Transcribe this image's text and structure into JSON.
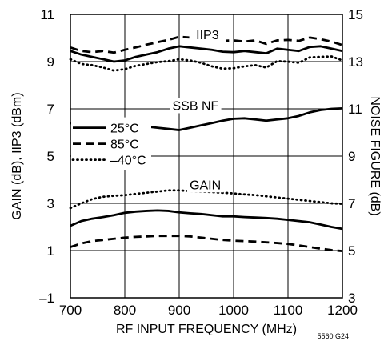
{
  "chart_data": {
    "type": "line",
    "title": "",
    "xlabel": "RF INPUT FREQUENCY (MHz)",
    "ylabel": "GAIN (dB), IIP3 (dBm)",
    "y2label": "NOISE FIGURE (dB)",
    "xlim": [
      700,
      1200
    ],
    "ylim": [
      -1,
      11
    ],
    "y2lim": [
      3,
      15
    ],
    "x_ticks": [
      "700",
      "800",
      "900",
      "1000",
      "1100",
      "1200"
    ],
    "y_ticks": [
      "–1",
      "1",
      "3",
      "5",
      "7",
      "9",
      "11"
    ],
    "y2_ticks": [
      "3",
      "5",
      "7",
      "9",
      "11",
      "13",
      "15"
    ],
    "grid": true,
    "legend_position": "middle-left",
    "legend": [
      {
        "label": "25°C",
        "style": "solid"
      },
      {
        "label": "85°C",
        "style": "dashed"
      },
      {
        "label": "–40°C",
        "style": "dotted"
      }
    ],
    "annotations": [
      {
        "text": "IIP3",
        "x": 952,
        "y": 9.95
      },
      {
        "text": "SSB NF",
        "x": 930,
        "y": 6.95
      },
      {
        "text": "GAIN",
        "x": 948,
        "y": 3.6
      }
    ],
    "figure_id": "5560 G24",
    "series": [
      {
        "group": "IIP3",
        "temp": "85°C",
        "style": "dashed",
        "axis": "left",
        "x": [
          700,
          720,
          740,
          760,
          780,
          800,
          820,
          840,
          860,
          880,
          900,
          920,
          940,
          960,
          980,
          1000,
          1020,
          1040,
          1060,
          1080,
          1100,
          1120,
          1140,
          1160,
          1180,
          1200
        ],
        "y": [
          9.6,
          9.45,
          9.4,
          9.45,
          9.38,
          9.5,
          9.6,
          9.72,
          9.82,
          9.92,
          10.05,
          10.02,
          10.0,
          9.95,
          9.88,
          9.9,
          9.85,
          9.9,
          9.75,
          9.9,
          9.92,
          9.88,
          10.02,
          9.95,
          9.85,
          9.7
        ]
      },
      {
        "group": "IIP3",
        "temp": "25°C",
        "style": "solid",
        "axis": "left",
        "x": [
          700,
          720,
          740,
          760,
          780,
          800,
          820,
          840,
          860,
          880,
          900,
          920,
          940,
          960,
          980,
          1000,
          1020,
          1040,
          1060,
          1080,
          1100,
          1120,
          1140,
          1160,
          1180,
          1200
        ],
        "y": [
          9.45,
          9.3,
          9.2,
          9.1,
          9.0,
          9.05,
          9.2,
          9.3,
          9.4,
          9.55,
          9.65,
          9.6,
          9.55,
          9.5,
          9.42,
          9.4,
          9.45,
          9.4,
          9.35,
          9.55,
          9.5,
          9.45,
          9.62,
          9.65,
          9.55,
          9.45
        ]
      },
      {
        "group": "IIP3",
        "temp": "–40°C",
        "style": "dotted",
        "axis": "left",
        "x": [
          700,
          720,
          740,
          760,
          780,
          800,
          820,
          840,
          860,
          880,
          900,
          920,
          940,
          960,
          980,
          1000,
          1020,
          1040,
          1060,
          1080,
          1100,
          1120,
          1140,
          1160,
          1180,
          1200
        ],
        "y": [
          9.1,
          8.9,
          8.85,
          8.75,
          8.62,
          8.68,
          8.82,
          8.9,
          8.98,
          9.02,
          9.1,
          9.05,
          8.95,
          8.8,
          8.7,
          8.72,
          8.8,
          8.85,
          8.75,
          9.02,
          9.0,
          8.95,
          9.18,
          9.2,
          9.22,
          9.05
        ]
      },
      {
        "group": "SSB NF",
        "temp": "25°C",
        "style": "solid",
        "axis": "right",
        "x": [
          700,
          720,
          740,
          760,
          780,
          800,
          820,
          840,
          860,
          880,
          900,
          920,
          940,
          960,
          980,
          1000,
          1020,
          1040,
          1060,
          1080,
          1100,
          1120,
          1140,
          1160,
          1180,
          1200
        ],
        "y": [
          10.4,
          10.3,
          10.25,
          10.25,
          10.27,
          10.3,
          10.28,
          10.25,
          10.2,
          10.15,
          10.1,
          10.2,
          10.3,
          10.4,
          10.5,
          10.58,
          10.6,
          10.55,
          10.5,
          10.55,
          10.6,
          10.7,
          10.85,
          10.95,
          11.0,
          11.02
        ]
      },
      {
        "group": "GAIN",
        "temp": "–40°C",
        "style": "dotted",
        "axis": "left",
        "x": [
          700,
          720,
          740,
          760,
          780,
          800,
          820,
          840,
          860,
          880,
          900,
          920,
          940,
          960,
          980,
          1000,
          1020,
          1040,
          1060,
          1080,
          1100,
          1120,
          1140,
          1160,
          1180,
          1200
        ],
        "y": [
          2.8,
          3.0,
          3.18,
          3.28,
          3.32,
          3.35,
          3.4,
          3.45,
          3.5,
          3.55,
          3.55,
          3.52,
          3.5,
          3.48,
          3.45,
          3.42,
          3.38,
          3.35,
          3.3,
          3.25,
          3.2,
          3.15,
          3.1,
          3.05,
          3.0,
          2.98
        ]
      },
      {
        "group": "GAIN",
        "temp": "25°C",
        "style": "solid",
        "axis": "left",
        "x": [
          700,
          720,
          740,
          760,
          780,
          800,
          820,
          840,
          860,
          880,
          900,
          920,
          940,
          960,
          980,
          1000,
          1020,
          1040,
          1060,
          1080,
          1100,
          1120,
          1140,
          1160,
          1180,
          1200
        ],
        "y": [
          2.05,
          2.25,
          2.35,
          2.42,
          2.5,
          2.6,
          2.65,
          2.68,
          2.7,
          2.68,
          2.62,
          2.58,
          2.55,
          2.5,
          2.45,
          2.45,
          2.42,
          2.4,
          2.38,
          2.35,
          2.3,
          2.25,
          2.2,
          2.1,
          2.0,
          1.92
        ]
      },
      {
        "group": "GAIN",
        "temp": "85°C",
        "style": "dashed",
        "axis": "left",
        "x": [
          700,
          720,
          740,
          760,
          780,
          800,
          820,
          840,
          860,
          880,
          900,
          920,
          940,
          960,
          980,
          1000,
          1020,
          1040,
          1060,
          1080,
          1100,
          1120,
          1140,
          1160,
          1180,
          1200
        ],
        "y": [
          1.15,
          1.3,
          1.4,
          1.45,
          1.5,
          1.55,
          1.58,
          1.6,
          1.62,
          1.62,
          1.62,
          1.6,
          1.55,
          1.5,
          1.45,
          1.42,
          1.4,
          1.38,
          1.35,
          1.32,
          1.28,
          1.22,
          1.15,
          1.08,
          1.02,
          0.98
        ]
      }
    ]
  }
}
